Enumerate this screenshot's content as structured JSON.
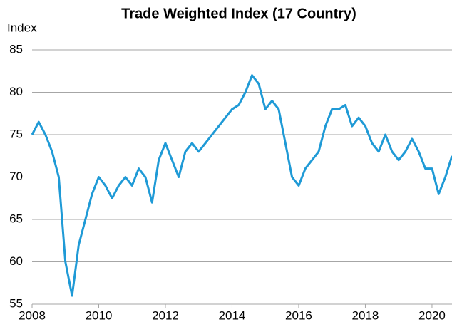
{
  "chart_data": {
    "type": "line",
    "title": "Trade Weighted Index (17 Country)",
    "y_label": "Index",
    "x": [
      2008.0,
      2008.2,
      2008.4,
      2008.6,
      2008.8,
      2009.0,
      2009.2,
      2009.4,
      2009.6,
      2009.8,
      2010.0,
      2010.2,
      2010.4,
      2010.6,
      2010.8,
      2011.0,
      2011.2,
      2011.4,
      2011.6,
      2011.8,
      2012.0,
      2012.2,
      2012.4,
      2012.6,
      2012.8,
      2013.0,
      2013.2,
      2013.4,
      2013.6,
      2013.8,
      2014.0,
      2014.2,
      2014.4,
      2014.6,
      2014.8,
      2015.0,
      2015.2,
      2015.4,
      2015.6,
      2015.8,
      2016.0,
      2016.2,
      2016.4,
      2016.6,
      2016.8,
      2017.0,
      2017.2,
      2017.4,
      2017.6,
      2017.8,
      2018.0,
      2018.2,
      2018.4,
      2018.6,
      2018.8,
      2019.0,
      2019.2,
      2019.4,
      2019.6,
      2019.8,
      2020.0,
      2020.2,
      2020.4,
      2020.6
    ],
    "series": [
      {
        "name": "Trade Weighted Index",
        "color": "#1f9ad6",
        "values": [
          75,
          76.5,
          75,
          73,
          70,
          60,
          56,
          62,
          65,
          68,
          70,
          69,
          67.5,
          69,
          70,
          69,
          71,
          70,
          67,
          72,
          74,
          72,
          70,
          73,
          74,
          73,
          74,
          75,
          76,
          77,
          78,
          78.5,
          80,
          82,
          81,
          78,
          79,
          78,
          74,
          70,
          69,
          71,
          72,
          73,
          76,
          78,
          78,
          78.5,
          76,
          77,
          76,
          74,
          73,
          75,
          73,
          72,
          73,
          74.5,
          73,
          71,
          71,
          68,
          70,
          72.5
        ]
      }
    ],
    "xlim": [
      2008,
      2020.6
    ],
    "xticks": [
      2008,
      2010,
      2012,
      2014,
      2016,
      2018,
      2020
    ],
    "ylim": [
      55,
      85
    ],
    "yticks": [
      55,
      60,
      65,
      70,
      75,
      80,
      85
    ],
    "grid": true
  }
}
